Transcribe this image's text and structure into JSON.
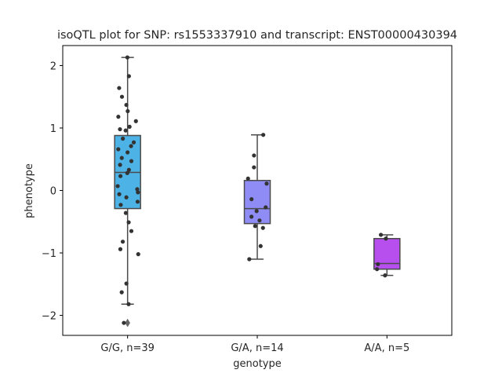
{
  "chart_data": {
    "type": "box",
    "title": "isoQTL plot for SNP: rs1553337910 and transcript: ENST00000430394",
    "xlabel": "genotype",
    "ylabel": "phenotype",
    "ylim": [
      -2.32,
      2.32
    ],
    "yticks": [
      -2,
      -1,
      0,
      1,
      2
    ],
    "grid": false,
    "categories": [
      "G/G, n=39",
      "G/A, n=14",
      "A/A, n=5"
    ],
    "colors": {
      "box_fills": [
        "#4db3e6",
        "#8f8cf5",
        "#b64fee"
      ],
      "outline": "#4a4a4a",
      "points": "#333333"
    },
    "boxes": [
      {
        "category": "G/G, n=39",
        "q1": -0.29,
        "median": 0.29,
        "q3": 0.88,
        "whisker_low": -1.82,
        "whisker_high": 2.13,
        "outliers": [
          -2.12
        ]
      },
      {
        "category": "G/A, n=14",
        "q1": -0.53,
        "median": -0.29,
        "q3": 0.16,
        "whisker_low": -1.1,
        "whisker_high": 0.89,
        "outliers": []
      },
      {
        "category": "A/A, n=5",
        "q1": -1.26,
        "median": -1.17,
        "q3": -0.77,
        "whisker_low": -1.36,
        "whisker_high": -0.71,
        "outliers": []
      }
    ],
    "points": [
      [
        2.13,
        1.83,
        1.64,
        1.5,
        1.37,
        1.27,
        1.18,
        1.11,
        1.02,
        0.96,
        0.83,
        0.77,
        0.71,
        0.66,
        0.61,
        0.52,
        0.47,
        0.41,
        0.33,
        0.28,
        0.23,
        0.07,
        0.02,
        -0.03,
        -0.06,
        -0.11,
        -0.18,
        -0.23,
        -0.36,
        -0.51,
        -0.65,
        -0.82,
        -0.94,
        -1.02,
        -1.49,
        -1.63,
        -1.82,
        -2.12,
        0.98
      ],
      [
        0.89,
        0.56,
        0.37,
        0.19,
        0.11,
        -0.14,
        -0.27,
        -0.33,
        -0.42,
        -0.48,
        -0.57,
        -0.6,
        -0.89,
        -1.1
      ],
      [
        -0.71,
        -0.77,
        -1.18,
        -1.26,
        -1.36
      ]
    ]
  }
}
